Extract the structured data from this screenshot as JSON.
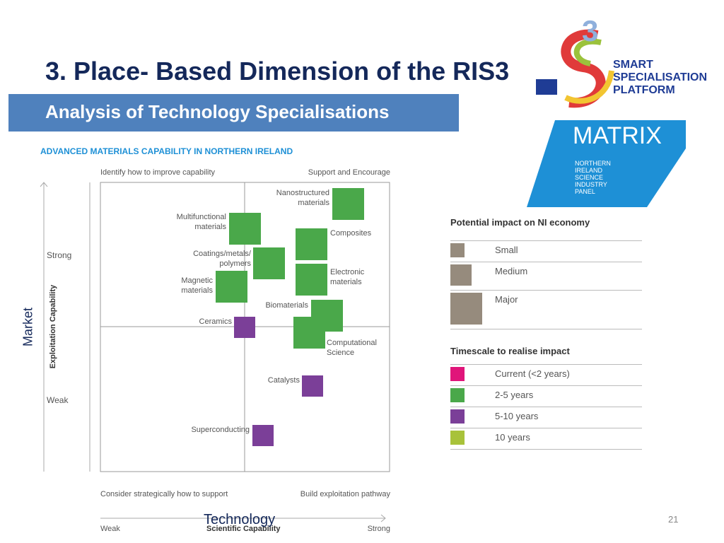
{
  "slide": {
    "title": "3. Place- Based Dimension of the RIS3",
    "subtitle": "Analysis of Technology Specialisations",
    "page_number": "21"
  },
  "logos": {
    "s3_number": "3",
    "s3_lines": [
      "SMART",
      "SPECIALISATION",
      "PLATFORM"
    ],
    "matrix_name": "MATRIX",
    "matrix_lines": [
      "NORTHERN",
      "IRELAND",
      "SCIENCE",
      "INDUSTRY",
      "PANEL"
    ]
  },
  "chart": {
    "title": "ADVANCED MATERIALS CAPABILITY IN NORTHERN IRELAND",
    "quadrants": [
      "Identify how to improve capability",
      "Support and Encourage",
      "Consider strategically how to support",
      "Build exploitation pathway"
    ],
    "y_axis": {
      "label": "Exploitation Capability",
      "high": "Strong",
      "low": "Weak",
      "overlay": "Market"
    },
    "x_axis": {
      "label": "Scientific Capability",
      "low": "Weak",
      "high": "Strong",
      "overlay": "Technology"
    },
    "items": [
      "Nanostructured materials",
      "Multifunctional materials",
      "Composites",
      "Coatings/metals/ polymers",
      "Electronic materials",
      "Magnetic materials",
      "Biomaterials",
      "Ceramics",
      "Computational Science",
      "Catalysts",
      "Superconducting"
    ]
  },
  "legend": {
    "impact_title": "Potential impact on NI economy",
    "impact": [
      "Small",
      "Medium",
      "Major"
    ],
    "timescale_title": "Timescale to realise impact",
    "timescale": [
      "Current (<2 years)",
      "2-5 years",
      "5-10 years",
      "10 years"
    ]
  }
}
